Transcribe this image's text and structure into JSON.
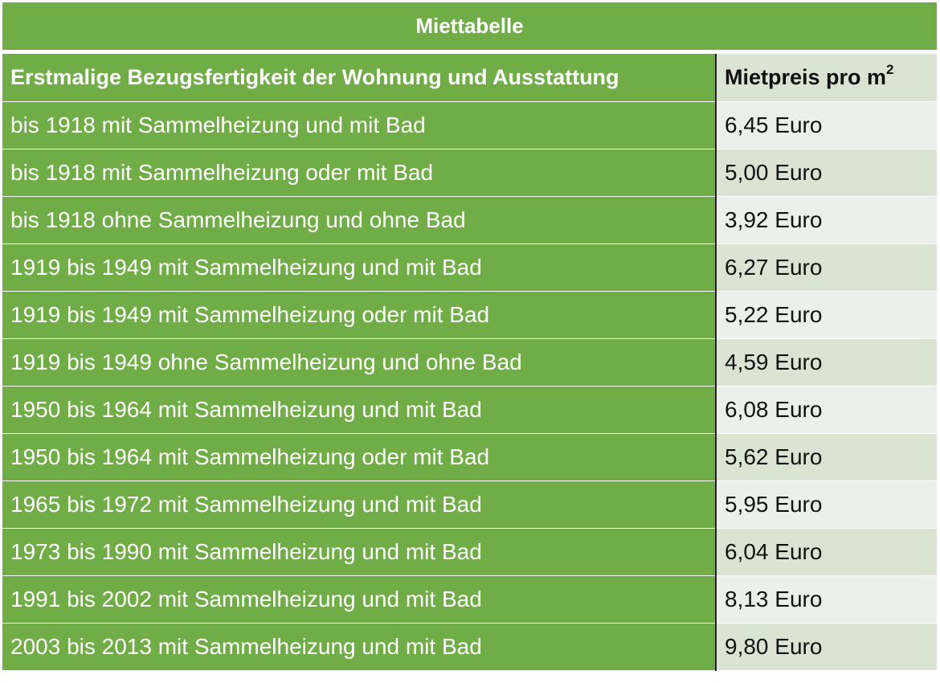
{
  "title": "Miettabelle",
  "header": {
    "col1": "Erstmalige Bezugsfertigkeit der Wohnung und Ausstattung",
    "col2": "Mietpreis pro m",
    "col2_sup": "2"
  },
  "rows": [
    {
      "label": "bis 1918 mit Sammelheizung und mit Bad",
      "price": "6,45 Euro"
    },
    {
      "label": "bis 1918 mit Sammelheizung oder mit Bad",
      "price": "5,00 Euro"
    },
    {
      "label": "bis 1918 ohne Sammelheizung und ohne Bad",
      "price": "3,92 Euro"
    },
    {
      "label": "1919 bis 1949 mit Sammelheizung und mit Bad",
      "price": "6,27 Euro"
    },
    {
      "label": "1919 bis 1949 mit Sammelheizung oder mit Bad",
      "price": "5,22 Euro"
    },
    {
      "label": "1919 bis 1949 ohne Sammelheizung und ohne Bad",
      "price": "4,59 Euro"
    },
    {
      "label": "1950 bis 1964 mit Sammelheizung und mit Bad",
      "price": "6,08 Euro"
    },
    {
      "label": "1950 bis 1964 mit Sammelheizung oder mit Bad",
      "price": "5,62 Euro"
    },
    {
      "label": "1965 bis 1972 mit Sammelheizung und mit Bad",
      "price": "5,95 Euro"
    },
    {
      "label": "1973 bis 1990 mit Sammelheizung und mit Bad",
      "price": "6,04 Euro"
    },
    {
      "label": "1991 bis 2002 mit Sammelheizung und mit Bad",
      "price": "8,13 Euro"
    },
    {
      "label": "2003 bis 2013 mit Sammelheizung und mit Bad",
      "price": "9,80 Euro"
    }
  ],
  "colors": {
    "accent": "#70ad47",
    "header_right": "#d9e5d2",
    "shade_light": "#ecf0ea"
  }
}
